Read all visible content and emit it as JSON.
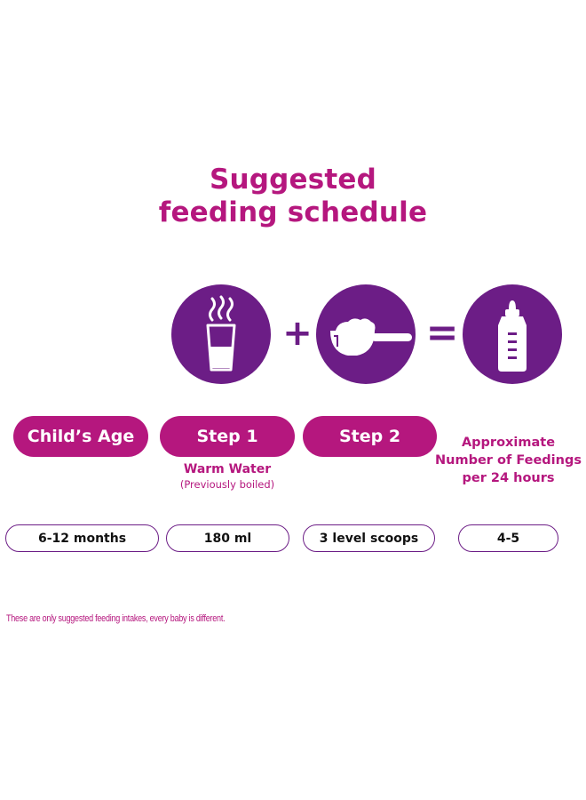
{
  "title": {
    "line1": "Suggested",
    "line2": "feeding schedule"
  },
  "icons": {
    "water": "warm-water-glass-icon",
    "scoop": "formula-scoop-icon",
    "bottle": "baby-bottle-icon",
    "plus": "+",
    "equals": "="
  },
  "headers": {
    "age": "Child’s Age",
    "step1": "Step 1",
    "step2": "Step 2",
    "feedings_line1": "Approximate",
    "feedings_line2": "Number of Feedings",
    "feedings_line3": "per 24 hours"
  },
  "step1_detail": {
    "label": "Warm Water",
    "note": "(Previously boiled)"
  },
  "row": {
    "age": "6-12 months",
    "water": "180 ml",
    "scoops": "3 level scoops",
    "feedings": "4-5"
  },
  "footnote": "These are only suggested feeding intakes, every baby is different.",
  "colors": {
    "magenta": "#b5177e",
    "purple": "#6c1d86",
    "background": "#ffffff"
  }
}
